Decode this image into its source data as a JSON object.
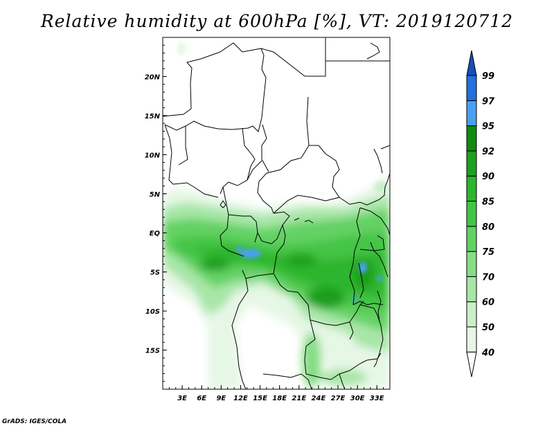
{
  "title": "Relative humidity at 600hPa [%], VT: 2019120712",
  "credit": "GrADS: IGES/COLA",
  "map": {
    "lon_range": [
      0,
      35
    ],
    "lat_range": [
      -20,
      25
    ],
    "lon_ticks": [
      "3E",
      "6E",
      "9E",
      "12E",
      "15E",
      "18E",
      "21E",
      "24E",
      "27E",
      "30E",
      "33E"
    ],
    "lat_ticks": [
      "20N",
      "15N",
      "10N",
      "5N",
      "EQ",
      "5S",
      "10S",
      "15S"
    ]
  },
  "colorbar": {
    "levels": [
      "40",
      "50",
      "60",
      "70",
      "75",
      "80",
      "85",
      "90",
      "92",
      "95",
      "97",
      "99"
    ],
    "colors": [
      "#ffffff",
      "#e6f7e6",
      "#c9efc9",
      "#a7e6a7",
      "#86dd86",
      "#63d163",
      "#44c444",
      "#2db52d",
      "#1f9f1f",
      "#128a12",
      "#4aa0ee",
      "#2270dd",
      "#1450b8"
    ]
  }
}
